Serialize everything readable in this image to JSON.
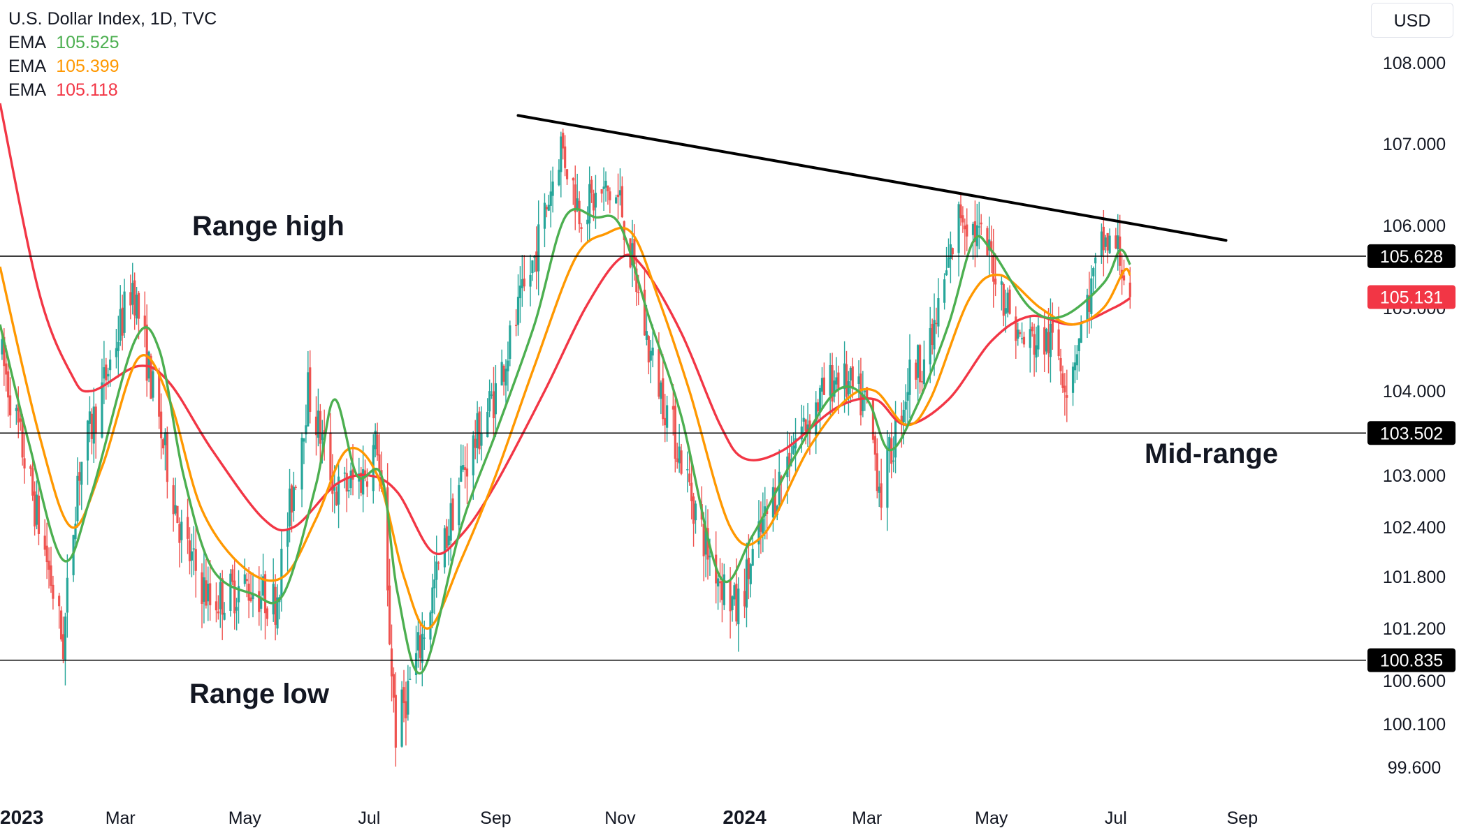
{
  "header": {
    "symbol_line": "U.S. Dollar Index, 1D, TVC",
    "currency": "USD",
    "indicators": [
      {
        "label": "EMA",
        "value": "105.525",
        "color": "#4caf50"
      },
      {
        "label": "EMA",
        "value": "105.399",
        "color": "#ff9800"
      },
      {
        "label": "EMA",
        "value": "105.118",
        "color": "#f23645"
      }
    ]
  },
  "annotations": {
    "range_high": "Range high",
    "mid_range": "Mid-range",
    "range_low": "Range low"
  },
  "colors": {
    "up": "#26a69a",
    "down": "#ef5350",
    "ema_fast": "#4caf50",
    "ema_mid": "#ff9800",
    "ema_slow": "#f23645",
    "hline": "#000000",
    "trendline": "#000000",
    "axis_text": "#131722"
  },
  "chart_data": {
    "type": "candlestick",
    "title": "U.S. Dollar Index, 1D, TVC",
    "x_ticks": [
      {
        "label": "2023",
        "date": "2023-01-01",
        "bold": true
      },
      {
        "label": "Mar",
        "date": "2023-03-01"
      },
      {
        "label": "May",
        "date": "2023-05-01"
      },
      {
        "label": "Jul",
        "date": "2023-07-01"
      },
      {
        "label": "Sep",
        "date": "2023-09-01"
      },
      {
        "label": "Nov",
        "date": "2023-11-01"
      },
      {
        "label": "2024",
        "date": "2024-01-01",
        "bold": true
      },
      {
        "label": "Mar",
        "date": "2024-03-01"
      },
      {
        "label": "May",
        "date": "2024-05-01"
      },
      {
        "label": "Jul",
        "date": "2024-07-01"
      },
      {
        "label": "Sep",
        "date": "2024-09-01"
      }
    ],
    "y_ticks": [
      "108.000",
      "107.000",
      "106.000",
      "105.000",
      "104.000",
      "103.000",
      "102.400",
      "101.800",
      "101.200",
      "100.600",
      "100.100",
      "99.600"
    ],
    "y_range": [
      99.4,
      108.4
    ],
    "x_range": [
      "2023-01-01",
      "2024-09-24"
    ],
    "price_lines": [
      {
        "value": 105.628,
        "label": "105.628"
      },
      {
        "value": 103.502,
        "label": "103.502"
      },
      {
        "value": 100.835,
        "label": "100.835"
      }
    ],
    "last_price": {
      "value": 105.131,
      "label": "105.131"
    },
    "trendline": [
      {
        "date": "2023-09-12",
        "value": 107.35
      },
      {
        "date": "2024-08-24",
        "value": 105.82
      }
    ],
    "ohlc_anchors": [
      [
        "2023-01-01",
        104.5
      ],
      [
        "2023-01-24",
        102.0
      ],
      [
        "2023-02-01",
        101.0
      ],
      [
        "2023-02-08",
        103.0
      ],
      [
        "2023-02-20",
        104.0
      ],
      [
        "2023-03-07",
        105.3
      ],
      [
        "2023-03-20",
        103.6
      ],
      [
        "2023-04-01",
        102.2
      ],
      [
        "2023-04-14",
        101.5
      ],
      [
        "2023-05-01",
        101.7
      ],
      [
        "2023-05-16",
        101.5
      ],
      [
        "2023-06-01",
        104.0
      ],
      [
        "2023-06-15",
        102.8
      ],
      [
        "2023-06-28",
        103.0
      ],
      [
        "2023-07-05",
        103.4
      ],
      [
        "2023-07-14",
        100.0
      ],
      [
        "2023-07-26",
        101.0
      ],
      [
        "2023-08-15",
        103.0
      ],
      [
        "2023-09-01",
        104.0
      ],
      [
        "2023-09-20",
        105.6
      ],
      [
        "2023-10-03",
        107.0
      ],
      [
        "2023-10-12",
        106.2
      ],
      [
        "2023-10-25",
        106.4
      ],
      [
        "2023-11-01",
        106.3
      ],
      [
        "2023-11-15",
        104.5
      ],
      [
        "2023-12-01",
        103.2
      ],
      [
        "2023-12-14",
        102.1
      ],
      [
        "2023-12-28",
        101.4
      ],
      [
        "2024-01-10",
        102.4
      ],
      [
        "2024-01-25",
        103.4
      ],
      [
        "2024-02-15",
        104.2
      ],
      [
        "2024-03-01",
        103.8
      ],
      [
        "2024-03-08",
        102.8
      ],
      [
        "2024-03-22",
        104.2
      ],
      [
        "2024-04-01",
        104.5
      ],
      [
        "2024-04-16",
        106.2
      ],
      [
        "2024-05-01",
        105.6
      ],
      [
        "2024-05-15",
        104.6
      ],
      [
        "2024-06-01",
        104.6
      ],
      [
        "2024-06-07",
        104.1
      ],
      [
        "2024-06-25",
        105.8
      ],
      [
        "2024-07-02",
        105.7
      ],
      [
        "2024-07-08",
        105.13
      ]
    ],
    "ema_fast": [
      [
        "2023-01-01",
        104.8
      ],
      [
        "2023-01-15",
        103.4
      ],
      [
        "2023-02-01",
        102.0
      ],
      [
        "2023-02-15",
        102.8
      ],
      [
        "2023-03-08",
        104.6
      ],
      [
        "2023-03-20",
        104.5
      ],
      [
        "2023-04-01",
        103.0
      ],
      [
        "2023-04-15",
        101.9
      ],
      [
        "2023-05-05",
        101.6
      ],
      [
        "2023-05-20",
        101.6
      ],
      [
        "2023-06-05",
        102.9
      ],
      [
        "2023-06-14",
        103.9
      ],
      [
        "2023-06-25",
        103.0
      ],
      [
        "2023-07-07",
        103.0
      ],
      [
        "2023-07-15",
        101.6
      ],
      [
        "2023-07-27",
        100.7
      ],
      [
        "2023-08-15",
        102.4
      ],
      [
        "2023-09-01",
        103.5
      ],
      [
        "2023-09-20",
        104.8
      ],
      [
        "2023-10-05",
        106.1
      ],
      [
        "2023-10-20",
        106.1
      ],
      [
        "2023-11-01",
        106.0
      ],
      [
        "2023-11-15",
        104.9
      ],
      [
        "2023-12-01",
        103.7
      ],
      [
        "2023-12-20",
        101.8
      ],
      [
        "2024-01-05",
        102.3
      ],
      [
        "2024-01-25",
        103.2
      ],
      [
        "2024-02-15",
        104.0
      ],
      [
        "2024-03-01",
        103.9
      ],
      [
        "2024-03-12",
        103.3
      ],
      [
        "2024-03-25",
        103.8
      ],
      [
        "2024-04-10",
        104.8
      ],
      [
        "2024-04-22",
        105.8
      ],
      [
        "2024-05-01",
        105.7
      ],
      [
        "2024-05-20",
        105.0
      ],
      [
        "2024-06-05",
        104.9
      ],
      [
        "2024-06-25",
        105.3
      ],
      [
        "2024-07-03",
        105.7
      ],
      [
        "2024-07-08",
        105.525
      ]
    ],
    "ema_mid": [
      [
        "2023-01-01",
        105.5
      ],
      [
        "2023-01-20",
        103.5
      ],
      [
        "2023-02-05",
        102.4
      ],
      [
        "2023-02-20",
        103.1
      ],
      [
        "2023-03-10",
        104.4
      ],
      [
        "2023-03-25",
        103.9
      ],
      [
        "2023-04-10",
        102.6
      ],
      [
        "2023-05-01",
        101.9
      ],
      [
        "2023-05-20",
        101.8
      ],
      [
        "2023-06-05",
        102.5
      ],
      [
        "2023-06-20",
        103.3
      ],
      [
        "2023-07-05",
        103.0
      ],
      [
        "2023-07-18",
        101.8
      ],
      [
        "2023-07-30",
        101.2
      ],
      [
        "2023-08-15",
        102.0
      ],
      [
        "2023-09-01",
        103.0
      ],
      [
        "2023-09-20",
        104.3
      ],
      [
        "2023-10-10",
        105.6
      ],
      [
        "2023-10-25",
        105.9
      ],
      [
        "2023-11-07",
        105.9
      ],
      [
        "2023-11-20",
        105.1
      ],
      [
        "2023-12-05",
        104.0
      ],
      [
        "2023-12-25",
        102.4
      ],
      [
        "2024-01-10",
        102.3
      ],
      [
        "2024-02-01",
        103.3
      ],
      [
        "2024-02-20",
        103.9
      ],
      [
        "2024-03-05",
        104.0
      ],
      [
        "2024-03-20",
        103.6
      ],
      [
        "2024-04-01",
        103.9
      ],
      [
        "2024-04-20",
        105.1
      ],
      [
        "2024-05-05",
        105.4
      ],
      [
        "2024-05-25",
        105.0
      ],
      [
        "2024-06-10",
        104.8
      ],
      [
        "2024-06-25",
        105.0
      ],
      [
        "2024-07-05",
        105.45
      ],
      [
        "2024-07-08",
        105.399
      ]
    ],
    "ema_slow": [
      [
        "2023-01-01",
        107.5
      ],
      [
        "2023-01-20",
        105.2
      ],
      [
        "2023-02-05",
        104.2
      ],
      [
        "2023-02-15",
        104.0
      ],
      [
        "2023-03-10",
        104.3
      ],
      [
        "2023-03-25",
        104.1
      ],
      [
        "2023-04-15",
        103.3
      ],
      [
        "2023-05-10",
        102.5
      ],
      [
        "2023-05-25",
        102.4
      ],
      [
        "2023-06-15",
        102.9
      ],
      [
        "2023-07-01",
        103.0
      ],
      [
        "2023-07-15",
        102.8
      ],
      [
        "2023-08-01",
        102.1
      ],
      [
        "2023-08-15",
        102.3
      ],
      [
        "2023-09-01",
        102.9
      ],
      [
        "2023-09-25",
        104.0
      ],
      [
        "2023-10-15",
        105.0
      ],
      [
        "2023-11-01",
        105.6
      ],
      [
        "2023-11-12",
        105.5
      ],
      [
        "2023-12-01",
        104.7
      ],
      [
        "2023-12-20",
        103.6
      ],
      [
        "2024-01-01",
        103.2
      ],
      [
        "2024-01-20",
        103.3
      ],
      [
        "2024-02-15",
        103.8
      ],
      [
        "2024-03-05",
        103.9
      ],
      [
        "2024-03-20",
        103.6
      ],
      [
        "2024-04-10",
        103.9
      ],
      [
        "2024-05-01",
        104.6
      ],
      [
        "2024-05-20",
        104.9
      ],
      [
        "2024-06-10",
        104.8
      ],
      [
        "2024-06-30",
        105.0
      ],
      [
        "2024-07-08",
        105.118
      ]
    ]
  }
}
